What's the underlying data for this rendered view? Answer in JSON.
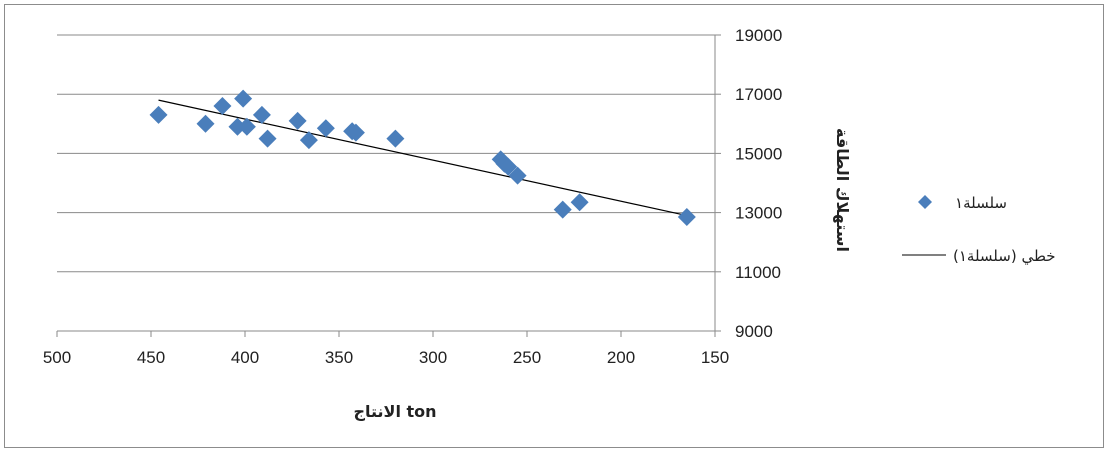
{
  "chart_data": {
    "type": "scatter",
    "title": "",
    "xlabel": "الانتاج ton",
    "ylabel": "استهلاك الطاقة",
    "x_reversed": true,
    "y_axis_side": "right",
    "xlim": [
      150,
      500
    ],
    "ylim": [
      9000,
      19000
    ],
    "x_ticks": [
      500,
      450,
      400,
      350,
      300,
      250,
      200,
      150
    ],
    "y_ticks": [
      9000,
      11000,
      13000,
      15000,
      17000,
      19000
    ],
    "grid": "horizontal",
    "legend_position": "right",
    "series": [
      {
        "name": "سلسلة١",
        "marker": "diamond",
        "color": "#4a7ebb",
        "points": [
          [
            446,
            16300
          ],
          [
            421,
            16000
          ],
          [
            412,
            16600
          ],
          [
            404,
            15900
          ],
          [
            401,
            16850
          ],
          [
            399,
            15900
          ],
          [
            391,
            16300
          ],
          [
            388,
            15500
          ],
          [
            372,
            16100
          ],
          [
            366,
            15450
          ],
          [
            357,
            15850
          ],
          [
            343,
            15750
          ],
          [
            341,
            15700
          ],
          [
            320,
            15500
          ],
          [
            264,
            14800
          ],
          [
            262,
            14650
          ],
          [
            260,
            14550
          ],
          [
            255,
            14250
          ],
          [
            231,
            13100
          ],
          [
            222,
            13350
          ],
          [
            165,
            12850
          ]
        ]
      }
    ],
    "trendline": {
      "name": "خطي (سلسلة١)",
      "type": "linear",
      "color": "#000000",
      "x": [
        446,
        165
      ],
      "y": [
        16800,
        12900
      ]
    }
  }
}
